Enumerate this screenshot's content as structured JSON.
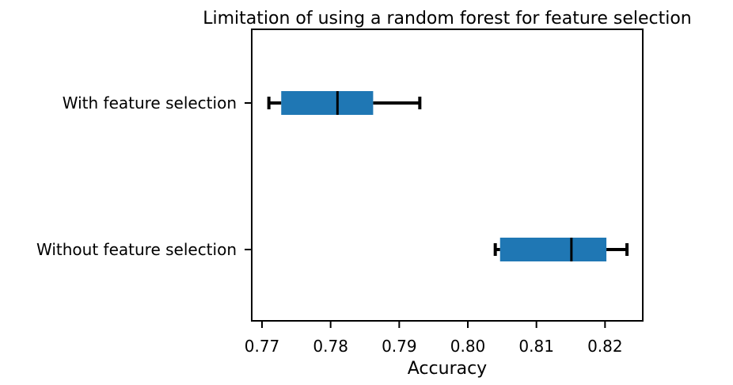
{
  "chart_data": {
    "type": "boxplot",
    "orientation": "horizontal",
    "title": "Limitation of using a random forest for feature selection",
    "xlabel": "Accuracy",
    "ylabel": "",
    "xlim": [
      0.7685,
      0.8255
    ],
    "xticks": [
      0.77,
      0.78,
      0.79,
      0.8,
      0.81,
      0.82
    ],
    "xtick_labels": [
      "0.77",
      "0.78",
      "0.79",
      "0.80",
      "0.81",
      "0.82"
    ],
    "categories": [
      "Without feature selection",
      "With feature selection"
    ],
    "box_color": "#1f77b4",
    "whisker_color": "#000000",
    "grid": false,
    "series": [
      {
        "name": "Without feature selection",
        "whisker_low": 0.804,
        "q1": 0.8047,
        "median": 0.8151,
        "q3": 0.8202,
        "whisker_high": 0.8232
      },
      {
        "name": "With feature selection",
        "whisker_low": 0.771,
        "q1": 0.7728,
        "median": 0.781,
        "q3": 0.7862,
        "whisker_high": 0.793
      }
    ]
  }
}
